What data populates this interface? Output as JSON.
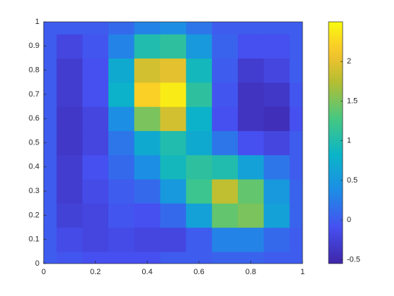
{
  "chart_data": {
    "type": "heatmap",
    "colormap": "parula",
    "x": [
      0,
      0.1,
      0.2,
      0.3,
      0.4,
      0.5,
      0.6,
      0.7,
      0.8,
      0.9,
      1
    ],
    "y": [
      0,
      0.1,
      0.2,
      0.3,
      0.4,
      0.5,
      0.6,
      0.7,
      0.8,
      0.9,
      1
    ],
    "z": [
      [
        0,
        -0.05,
        -0.1,
        -0.1,
        -0.1,
        0,
        0,
        0.05,
        0.05,
        0,
        0
      ],
      [
        0,
        -0.15,
        -0.2,
        -0.15,
        -0.2,
        -0.2,
        0,
        0.3,
        0.3,
        0.1,
        0
      ],
      [
        0,
        -0.25,
        -0.2,
        -0.05,
        -0.1,
        0.1,
        0.6,
        1.4,
        1.5,
        0.6,
        0.05
      ],
      [
        0,
        -0.3,
        -0.15,
        0,
        0.1,
        0.5,
        1.2,
        1.8,
        1.4,
        0.5,
        0.05
      ],
      [
        0,
        -0.3,
        -0.1,
        0.1,
        0.4,
        0.9,
        1.1,
        1.0,
        0.6,
        0.2,
        0
      ],
      [
        0,
        -0.35,
        -0.2,
        0.2,
        0.7,
        1.0,
        0.7,
        0.2,
        -0.1,
        -0.2,
        0
      ],
      [
        0,
        -0.35,
        -0.2,
        0.4,
        1.5,
        1.9,
        0.8,
        -0.1,
        -0.4,
        -0.45,
        -0.1
      ],
      [
        0,
        -0.3,
        -0.1,
        0.8,
        2.2,
        2.4,
        1.1,
        -0.05,
        -0.4,
        -0.35,
        -0.05
      ],
      [
        0,
        -0.3,
        -0.1,
        0.7,
        1.9,
        2.0,
        0.9,
        0,
        -0.3,
        -0.2,
        0
      ],
      [
        0,
        -0.2,
        -0.05,
        0.3,
        1.0,
        1.1,
        0.5,
        0.05,
        -0.1,
        -0.1,
        0
      ],
      [
        0,
        0,
        0,
        0.1,
        0.3,
        0.4,
        0.2,
        0,
        0,
        0,
        0
      ]
    ],
    "xlim": [
      0,
      1
    ],
    "ylim": [
      0,
      1
    ],
    "zlim": [
      -0.55,
      2.5
    ],
    "xticks": [
      0,
      0.2,
      0.4,
      0.6,
      0.8,
      1
    ],
    "yticks": [
      0,
      0.1,
      0.2,
      0.3,
      0.4,
      0.5,
      0.6,
      0.7,
      0.8,
      0.9,
      1
    ],
    "colorbar_ticks": [
      -0.5,
      0,
      0.5,
      1,
      1.5,
      2
    ]
  }
}
